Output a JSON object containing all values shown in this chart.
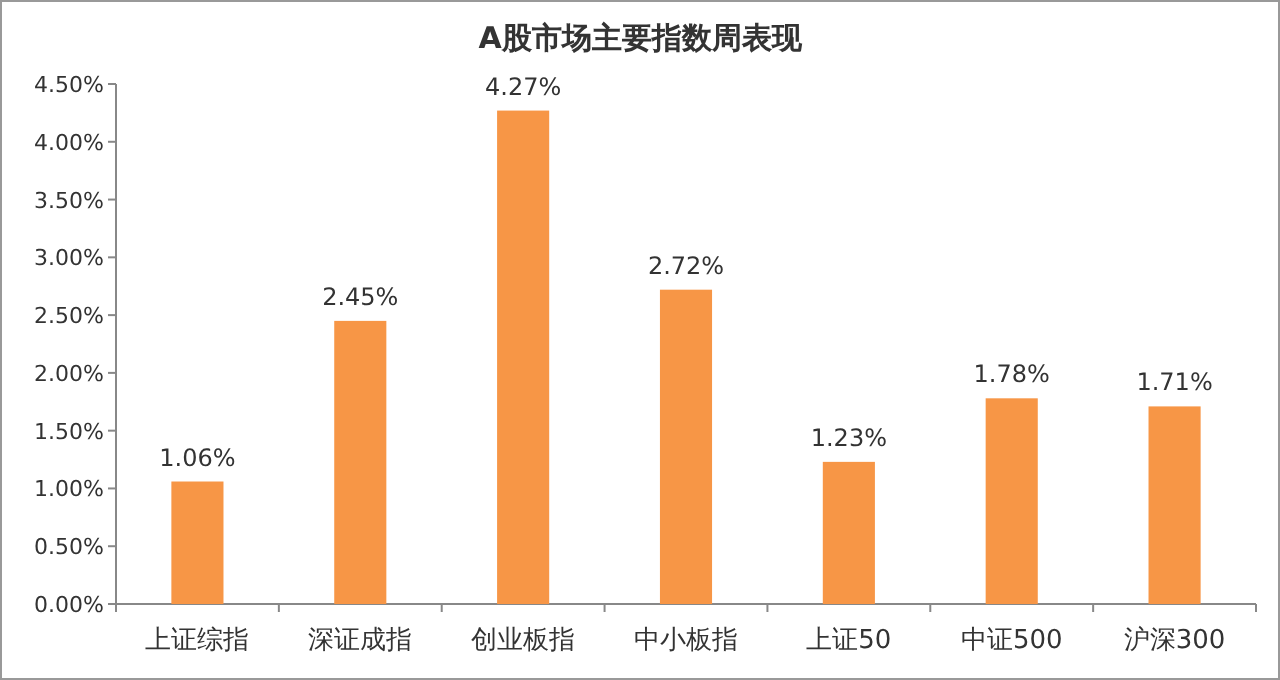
{
  "chart_data": {
    "type": "bar",
    "title": "A股市场主要指数周表现",
    "categories": [
      "上证综指",
      "深证成指",
      "创业板指",
      "中小板指",
      "上证50",
      "中证500",
      "沪深300"
    ],
    "values": [
      1.06,
      2.45,
      4.27,
      2.72,
      1.23,
      1.78,
      1.71
    ],
    "value_labels": [
      "1.06%",
      "2.45%",
      "4.27%",
      "2.72%",
      "1.23%",
      "1.78%",
      "1.71%"
    ],
    "color": "#f79646",
    "ylim": [
      0,
      4.5
    ],
    "yticks": [
      {
        "value": 0,
        "label": "0.00%"
      },
      {
        "value": 0.5,
        "label": "0.50%"
      },
      {
        "value": 1,
        "label": "1.00%"
      },
      {
        "value": 1.5,
        "label": "1.50%"
      },
      {
        "value": 2,
        "label": "2.00%"
      },
      {
        "value": 2.5,
        "label": "2.50%"
      },
      {
        "value": 3,
        "label": "3.00%"
      },
      {
        "value": 3.5,
        "label": "3.50%"
      },
      {
        "value": 4,
        "label": "4.00%"
      },
      {
        "value": 4.5,
        "label": "4.50%"
      }
    ]
  }
}
